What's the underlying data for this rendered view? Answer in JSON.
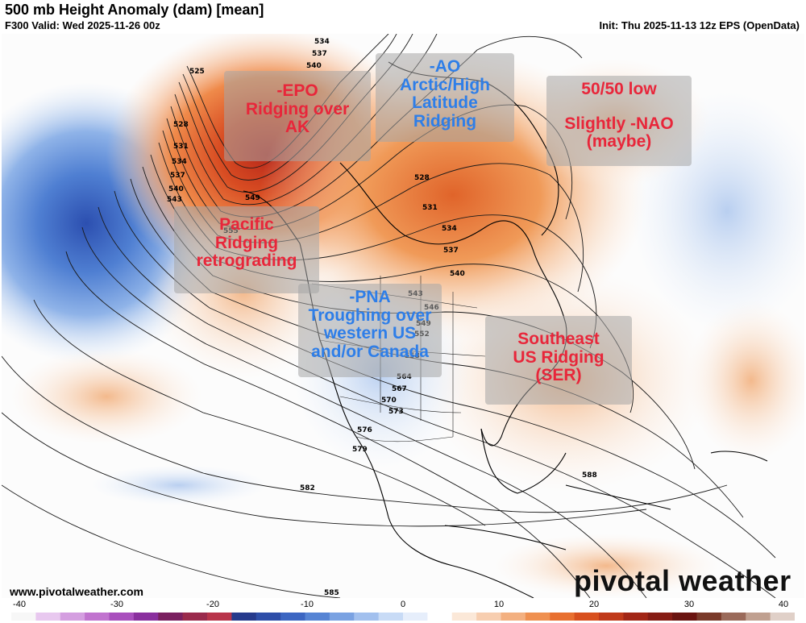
{
  "header": {
    "title": "500 mb Height Anomaly (dam) [mean]",
    "valid": "F300 Valid: Wed 2025-11-26 00z",
    "init": "Init: Thu 2025-11-13 12z EPS (OpenData)"
  },
  "annotations": {
    "epo": {
      "lines": [
        "-EPO",
        "Ridging over",
        "AK"
      ],
      "color": "#e8263a"
    },
    "ao": {
      "lines": [
        "-AO",
        "Arctic/High",
        "Latitude",
        "Ridging"
      ],
      "color": "#2e7ee8"
    },
    "nao": {
      "lines": [
        "50/50 low",
        "",
        "Slightly -NAO",
        "(maybe)"
      ],
      "color": "#e8263a"
    },
    "pacific": {
      "lines": [
        "Pacific",
        "Ridging",
        "retrograding"
      ],
      "color": "#e8263a"
    },
    "pna": {
      "lines": [
        "-PNA",
        "Troughing over",
        "western US",
        "and/or Canada"
      ],
      "color": "#2e7ee8"
    },
    "ser": {
      "lines": [
        "Southeast",
        "US Ridging",
        "(SER)"
      ],
      "color": "#e8263a"
    }
  },
  "height_labels": [
    "525",
    "528",
    "531",
    "534",
    "537",
    "540",
    "543",
    "534",
    "537",
    "540",
    "549",
    "552",
    "555",
    "528",
    "531",
    "534",
    "537",
    "540",
    "543",
    "546",
    "549",
    "552",
    "558",
    "564",
    "567",
    "570",
    "573",
    "576",
    "579",
    "582",
    "585",
    "588"
  ],
  "footer": {
    "website": "www.pivotalweather.com",
    "brand": "pivotal weather"
  },
  "colorbar": {
    "ticks": [
      "-40",
      "-30",
      "-20",
      "-10",
      "0",
      "10",
      "20",
      "30",
      "40"
    ],
    "colors": [
      "#f7f7f7",
      "#e8c8ef",
      "#d49ee0",
      "#c173cf",
      "#a94fbd",
      "#8a2f9e",
      "#7a2060",
      "#9a2a4c",
      "#b8344a",
      "#263a8c",
      "#2e4ea8",
      "#3c66c2",
      "#5684d4",
      "#7aa2e2",
      "#a2c0ee",
      "#c8dbf6",
      "#e6eefb",
      "#ffffff",
      "#fbe8d8",
      "#f7ceb0",
      "#f3b080",
      "#ef9050",
      "#e87030",
      "#d8501e",
      "#c03a1a",
      "#a22616",
      "#861c14",
      "#6a1410",
      "#7a3a2a",
      "#9a6a5a",
      "#c0a090",
      "#e0d0c8"
    ]
  }
}
